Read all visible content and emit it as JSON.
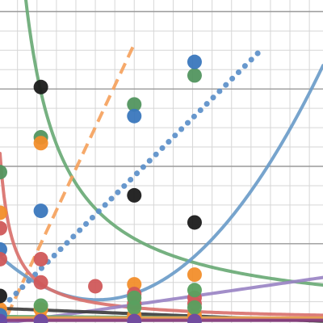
{
  "chart_data": {
    "type": "line",
    "title": "",
    "xlabel": "",
    "ylabel": "",
    "xlim": [
      0.3,
      8.6
    ],
    "ylim": [
      -0.05,
      8.3
    ],
    "grid": "on",
    "legend": "none",
    "axis_lines": {
      "x": 0,
      "y": 0
    },
    "gridlines_x": [
      0.75,
      1.25,
      1.75,
      2.25,
      2.75,
      3.25,
      3.75,
      4.25,
      4.75,
      5.25,
      5.75,
      6.25,
      6.75,
      7.25,
      7.75,
      8.25
    ],
    "gridlines_y": [
      0.5,
      1,
      1.5,
      2,
      2.5,
      3,
      3.5,
      4,
      4.5,
      5,
      5.5,
      6,
      6.5,
      7,
      7.5,
      8
    ],
    "series": [
      {
        "color": "#6aaa76",
        "style": "solid",
        "width": 4,
        "fn": "reciprocal",
        "k": 8,
        "x_range": [
          0.55,
          8.6
        ]
      },
      {
        "color": "#f5a25d",
        "style": "dashed",
        "width": 4,
        "fn": "linear",
        "m": 2.15,
        "b": -0.9,
        "x_range": [
          0.3,
          3.75
        ]
      },
      {
        "color": "#5b8fc9",
        "style": "dotted",
        "width": 4,
        "fn": "linear",
        "m": 1.0,
        "b": 0,
        "x_range": [
          0.55,
          7.0
        ]
      },
      {
        "color": "#6b9cc9",
        "style": "solid",
        "width": 4,
        "fn": "quad",
        "a": 0.18,
        "h": 2.8,
        "c": 0.55,
        "x_range": [
          0.3,
          8.6
        ]
      },
      {
        "color": "#d9716d",
        "style": "solid",
        "width": 4,
        "fn": "reciprocal",
        "k": 1.3,
        "x_range": [
          0.3,
          8.6
        ]
      },
      {
        "color": "#9a84c4",
        "style": "solid",
        "width": 4,
        "fn": "linear",
        "m": 0.145,
        "b": -0.12,
        "x_range": [
          0.3,
          8.6
        ]
      },
      {
        "color": "#3d3d3d",
        "style": "solid",
        "width": 4,
        "fn": "linear",
        "m": -0.04,
        "b": 0.34,
        "x_range": [
          0.3,
          8.6
        ]
      },
      {
        "color": "#66a86e",
        "style": "solid",
        "width": 4,
        "fn": "linear",
        "m": -0.006,
        "b": 0.12,
        "x_range": [
          0.3,
          8.6
        ]
      },
      {
        "color": "#ee9d52",
        "style": "solid",
        "width": 4,
        "fn": "linear",
        "m": 0.0,
        "b": 0.08,
        "x_range": [
          0.3,
          8.6
        ]
      },
      {
        "color": "#8a3d80",
        "style": "solid",
        "width": 4,
        "fn": "linear",
        "m": 0.0,
        "b": 0.02,
        "x_range": [
          0.3,
          8.6
        ]
      }
    ],
    "points": [
      {
        "color": "#52955f",
        "values": [
          [
            0.3,
            3.85
          ],
          [
            1.35,
            4.75
          ],
          [
            3.75,
            5.6
          ],
          [
            5.3,
            6.35
          ]
        ]
      },
      {
        "color": "#f28e2b",
        "values": [
          [
            0.3,
            2.8
          ],
          [
            1.35,
            4.6
          ],
          [
            3.75,
            0.95
          ],
          [
            5.3,
            1.2
          ],
          [
            0.3,
            0.3
          ],
          [
            1.35,
            0.3
          ],
          [
            3.75,
            0.15
          ],
          [
            5.3,
            0.15
          ],
          [
            1.35,
            0.05
          ],
          [
            3.75,
            0.05
          ],
          [
            5.3,
            0.05
          ],
          [
            0.3,
            0.1
          ]
        ]
      },
      {
        "color": "#1b1b1b",
        "values": [
          [
            1.35,
            6.05
          ],
          [
            3.75,
            3.25
          ],
          [
            5.3,
            2.55
          ],
          [
            0.3,
            0.65
          ]
        ]
      },
      {
        "color": "#3a77bd",
        "values": [
          [
            0.3,
            1.85
          ],
          [
            1.35,
            2.85
          ],
          [
            3.75,
            5.3
          ],
          [
            5.3,
            6.7
          ],
          [
            0.3,
            0.15
          ]
        ]
      },
      {
        "color": "#d0585a",
        "values": [
          [
            0.3,
            2.4
          ],
          [
            0.3,
            1.6
          ],
          [
            1.35,
            1.6
          ],
          [
            2.75,
            0.9
          ],
          [
            3.75,
            0.7
          ],
          [
            5.3,
            0.6
          ],
          [
            1.35,
            1.0
          ],
          [
            3.75,
            0.45
          ],
          [
            5.3,
            0.45
          ]
        ]
      },
      {
        "color": "#59a05f",
        "values": [
          [
            1.35,
            0.4
          ],
          [
            3.75,
            0.6
          ],
          [
            5.3,
            0.8
          ],
          [
            3.75,
            0.35
          ],
          [
            5.3,
            0.35
          ]
        ]
      },
      {
        "color": "#6a4aa5",
        "values": [
          [
            0.3,
            0.0
          ],
          [
            1.35,
            0.0
          ],
          [
            3.75,
            0.0
          ],
          [
            5.3,
            0.0
          ]
        ]
      }
    ]
  }
}
